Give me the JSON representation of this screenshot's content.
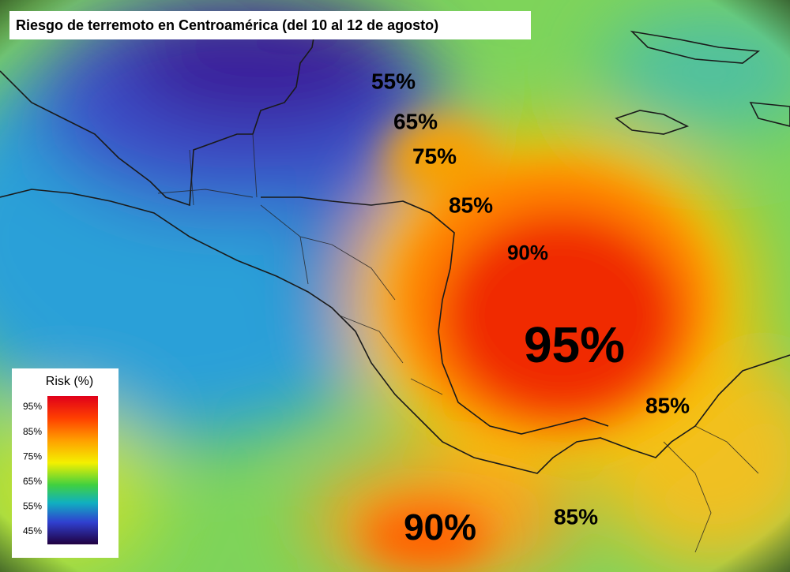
{
  "title": "Riesgo de terremoto en Centroamérica (del 10 al 12 de agosto)",
  "labels": [
    {
      "text": "55%"
    },
    {
      "text": "65%"
    },
    {
      "text": "75%"
    },
    {
      "text": "85%"
    },
    {
      "text": "90%"
    },
    {
      "text": "95%"
    },
    {
      "text": "85%"
    },
    {
      "text": "90%"
    },
    {
      "text": "85%"
    }
  ],
  "legend": {
    "title": "Risk (%)",
    "ticks": [
      "95%",
      "85%",
      "75%",
      "65%",
      "55%",
      "45%"
    ]
  }
}
